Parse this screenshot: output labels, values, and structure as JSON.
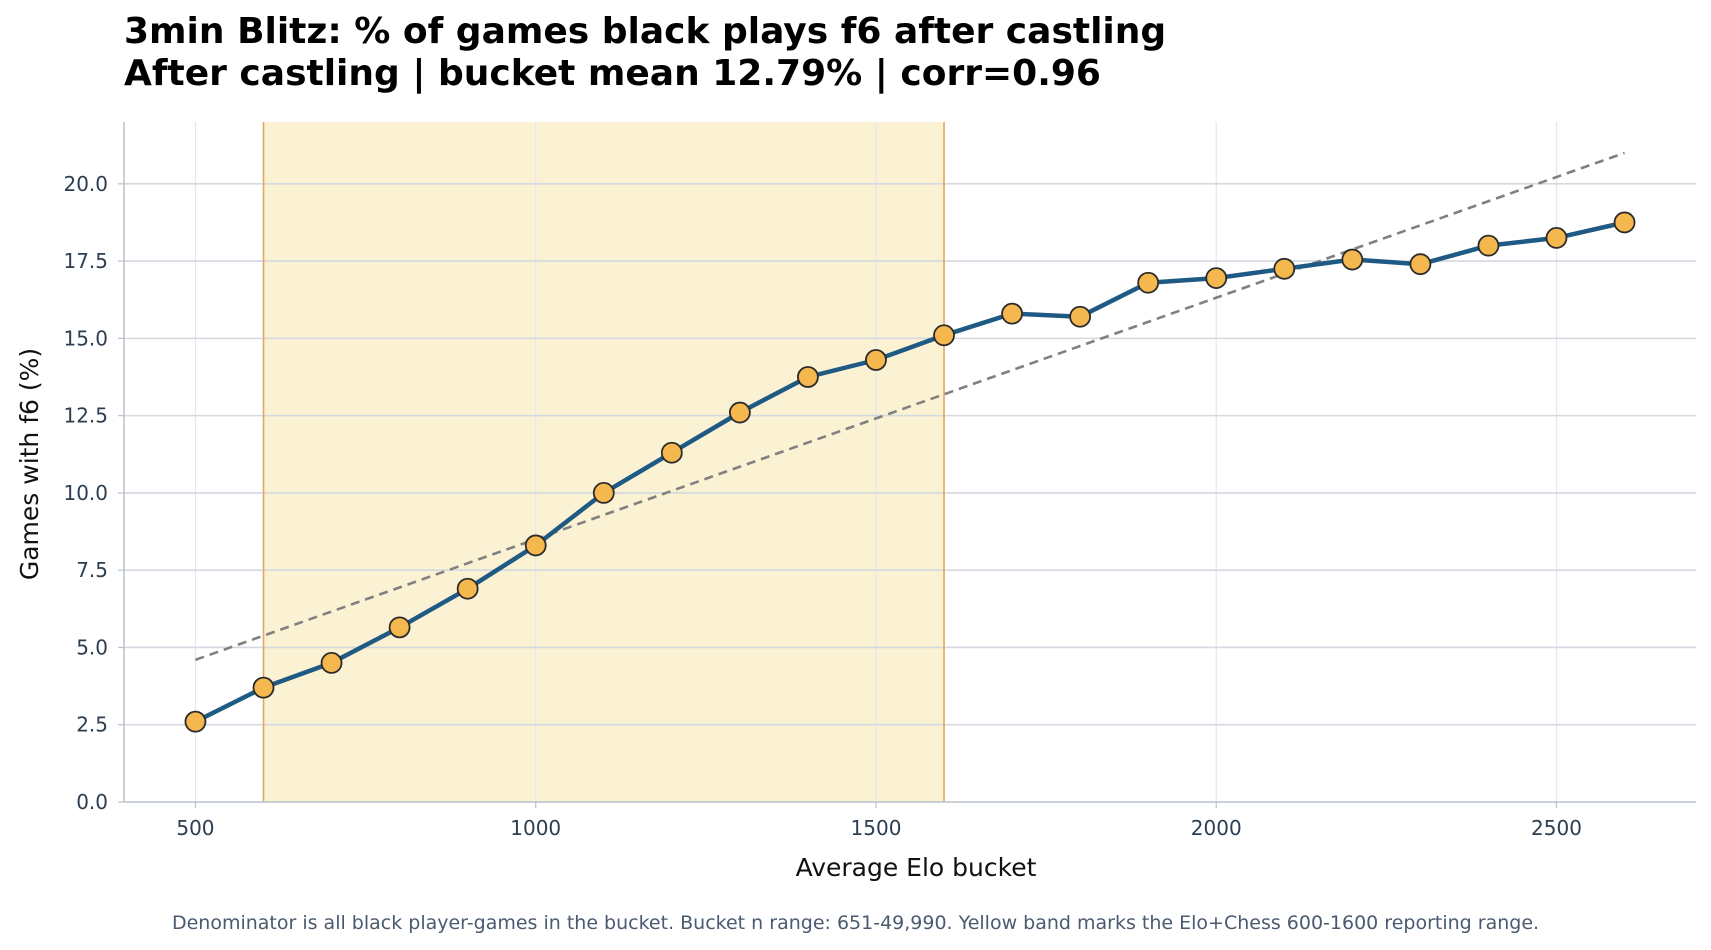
{
  "chart_data": {
    "type": "line",
    "title": "3min Blitz: % of games black plays f6 after castling",
    "subtitle": "After castling | bucket mean 12.79% | corr=0.96",
    "xlabel": "Average Elo bucket",
    "ylabel": "Games with f6 (%)",
    "xlim": [
      395,
      2705
    ],
    "ylim": [
      0,
      22
    ],
    "x_ticks": [
      500,
      1000,
      1500,
      2000,
      2500
    ],
    "y_ticks": [
      0.0,
      2.5,
      5.0,
      7.5,
      10.0,
      12.5,
      15.0,
      17.5,
      20.0
    ],
    "y_tick_labels": [
      "0.0",
      "2.5",
      "5.0",
      "7.5",
      "10.0",
      "12.5",
      "15.0",
      "17.5",
      "20.0"
    ],
    "grid": true,
    "series": [
      {
        "x": [
          500,
          600,
          700,
          800,
          900,
          1000,
          1100,
          1200,
          1300,
          1400,
          1500,
          1600,
          1700,
          1800,
          1900,
          2000,
          2100,
          2200,
          2300,
          2400,
          2500,
          2600
        ],
        "values": [
          2.6,
          3.7,
          4.5,
          5.65,
          6.9,
          8.3,
          10.0,
          11.3,
          12.6,
          13.75,
          14.3,
          15.1,
          15.8,
          15.7,
          16.8,
          16.95,
          17.25,
          17.55,
          17.4,
          18.0,
          18.25,
          18.75
        ],
        "line_color": "#1f5a85",
        "marker_color": "#f4b84e",
        "marker_edge": "#2b2b2b"
      }
    ],
    "trendline": {
      "x": [
        500,
        2600
      ],
      "y": [
        4.6,
        21.0
      ],
      "color": "#808080",
      "style": "dashed"
    },
    "highlight_band": {
      "x_start": 600,
      "x_end": 1600,
      "fill": "#fbf1d3",
      "edge": "#e0a860"
    }
  },
  "footnote": "Denominator is all black player-games in the bucket. Bucket n range: 651-49,990. Yellow band marks the Elo+Chess 600-1600 reporting range."
}
